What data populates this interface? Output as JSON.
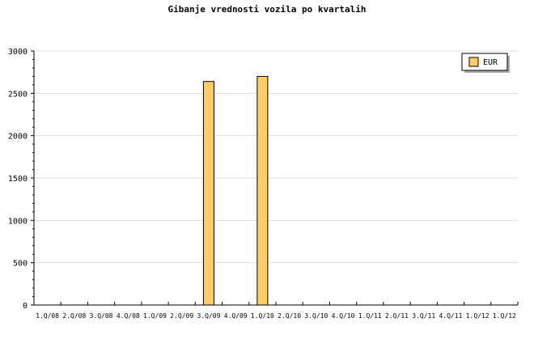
{
  "chart_data": {
    "type": "bar",
    "title": "Gibanje vrednosti vozila po kvartalih",
    "xlabel": "",
    "ylabel": "",
    "categories": [
      "1.Q/08",
      "2.Q/08",
      "3.Q/08",
      "4.Q/08",
      "1.Q/09",
      "2.Q/09",
      "3.Q/09",
      "4.Q/09",
      "1.Q/10",
      "2.Q/10",
      "3.Q/10",
      "4.Q/10",
      "1.Q/11",
      "2.Q/11",
      "3.Q/11",
      "4.Q/11",
      "1.Q/12",
      "1.Q/12"
    ],
    "series": [
      {
        "name": "EUR",
        "values": [
          0,
          0,
          0,
          0,
          0,
          0,
          2640,
          0,
          2700,
          0,
          0,
          0,
          0,
          0,
          0,
          0,
          0,
          0
        ],
        "color": "#ffcc66"
      }
    ],
    "ylim": [
      0,
      3000
    ],
    "yticks": [
      0,
      500,
      1000,
      1500,
      2000,
      2500,
      3000
    ],
    "grid": true,
    "legend": "top-right"
  }
}
